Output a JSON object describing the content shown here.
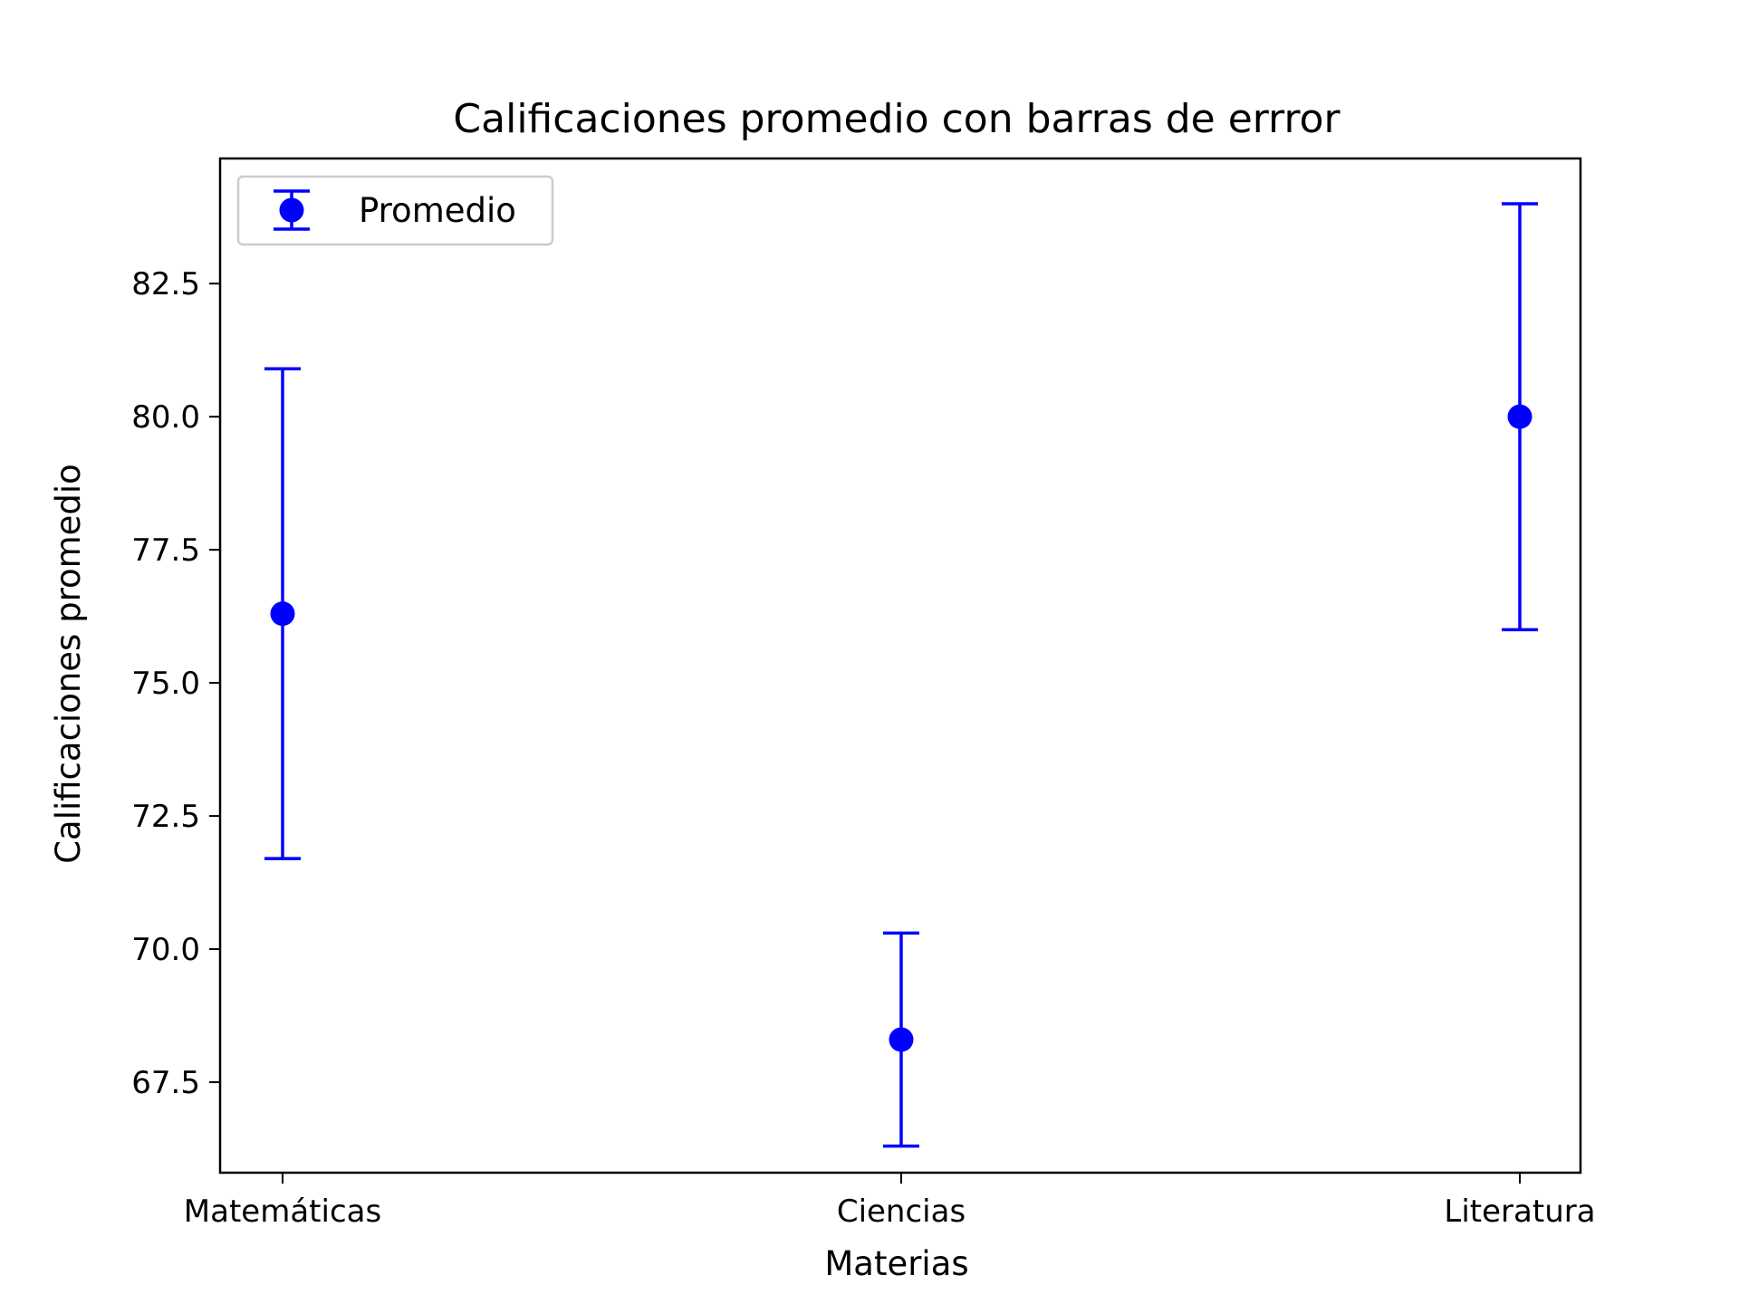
{
  "chart_data": {
    "type": "scatter",
    "title": "Calificaciones promedio con barras de errror",
    "xlabel": "Materias",
    "ylabel": "Calificaciones promedio",
    "categories": [
      "Matemáticas",
      "Ciencias",
      "Literatura"
    ],
    "series": [
      {
        "name": "Promedio",
        "values": [
          76.3,
          68.3,
          80.0
        ],
        "errors": [
          4.6,
          2.0,
          4.0
        ],
        "color": "#0000ff"
      }
    ],
    "ylim": [
      65.8,
      84.85
    ],
    "yticks": [
      67.5,
      70.0,
      72.5,
      75.0,
      77.5,
      80.0,
      82.5
    ],
    "ytick_labels": [
      "67.5",
      "70.0",
      "72.5",
      "75.0",
      "77.5",
      "80.0",
      "82.5"
    ],
    "grid": false,
    "legend_position": "top-left"
  }
}
